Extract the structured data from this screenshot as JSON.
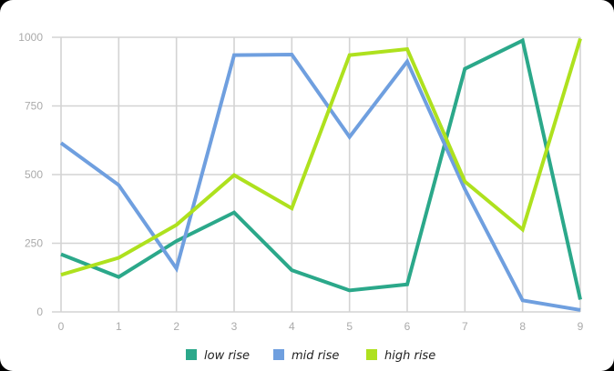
{
  "chart_data": {
    "type": "line",
    "x": [
      0,
      1,
      2,
      3,
      4,
      5,
      6,
      7,
      8,
      9
    ],
    "xlim": [
      0,
      9
    ],
    "ylim": [
      0,
      1000
    ],
    "yticks": [
      0,
      250,
      500,
      750,
      1000
    ],
    "xticks": [
      0,
      1,
      2,
      3,
      4,
      5,
      6,
      7,
      8,
      9
    ],
    "grid": true,
    "legend_position": "bottom",
    "series": [
      {
        "name": "low rise",
        "color": "#2ba88a",
        "values": [
          210,
          127,
          258,
          362,
          152,
          78,
          100,
          885,
          988,
          45
        ]
      },
      {
        "name": "mid rise",
        "color": "#6f9fdf",
        "values": [
          615,
          462,
          158,
          935,
          937,
          637,
          912,
          447,
          42,
          7
        ]
      },
      {
        "name": "high rise",
        "color": "#aee11e",
        "values": [
          135,
          197,
          317,
          498,
          377,
          935,
          957,
          475,
          300,
          995
        ]
      }
    ]
  }
}
